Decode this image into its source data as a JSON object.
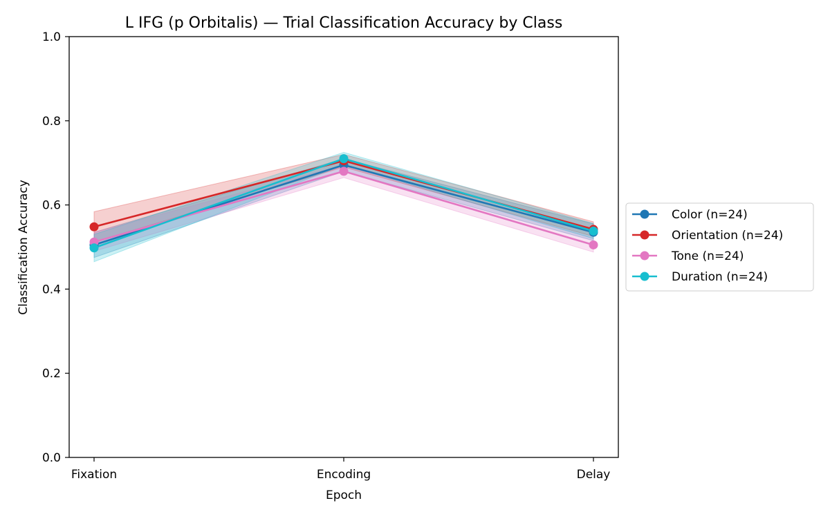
{
  "chart_data": {
    "type": "line",
    "title": "L IFG (p Orbitalis) — Trial Classification Accuracy by Class",
    "xlabel": "Epoch",
    "ylabel": "Classification Accuracy",
    "categories": [
      "Fixation",
      "Encoding",
      "Delay"
    ],
    "ylim": [
      0.0,
      1.0
    ],
    "yticks": [
      "0.0",
      "0.2",
      "0.4",
      "0.6",
      "0.8",
      "1.0"
    ],
    "grid": false,
    "legend_position": "outside-right",
    "series": [
      {
        "name": "Color (n=24)",
        "color": "#1f77b4",
        "values": [
          0.505,
          0.695,
          0.535
        ],
        "lower": [
          0.475,
          0.68,
          0.515
        ],
        "upper": [
          0.535,
          0.71,
          0.555
        ]
      },
      {
        "name": "Orientation (n=24)",
        "color": "#d62728",
        "values": [
          0.548,
          0.705,
          0.542
        ],
        "lower": [
          0.512,
          0.69,
          0.525
        ],
        "upper": [
          0.584,
          0.72,
          0.56
        ]
      },
      {
        "name": "Tone (n=24)",
        "color": "#e377c2",
        "values": [
          0.512,
          0.68,
          0.505
        ],
        "lower": [
          0.49,
          0.665,
          0.488
        ],
        "upper": [
          0.535,
          0.695,
          0.522
        ]
      },
      {
        "name": "Duration (n=24)",
        "color": "#17becf",
        "values": [
          0.498,
          0.71,
          0.538
        ],
        "lower": [
          0.465,
          0.695,
          0.52
        ],
        "upper": [
          0.53,
          0.725,
          0.556
        ]
      }
    ]
  }
}
